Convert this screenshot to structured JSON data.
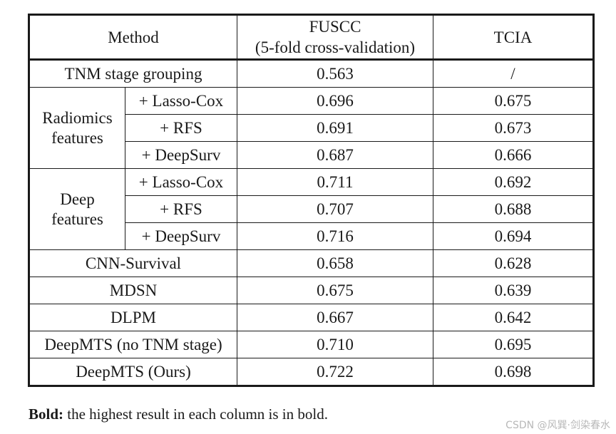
{
  "table": {
    "headers": {
      "method": "Method",
      "fuscc_line1": "FUSCC",
      "fuscc_line2": "(5-fold cross-validation)",
      "tcia": "TCIA"
    },
    "tnm": {
      "method": "TNM stage grouping",
      "fuscc": "0.563",
      "tcia": "/"
    },
    "radiomics": {
      "group_line1": "Radiomics",
      "group_line2": "features",
      "rows": [
        {
          "sub": "+ Lasso-Cox",
          "fuscc": "0.696",
          "tcia": "0.675"
        },
        {
          "sub": "+ RFS",
          "fuscc": "0.691",
          "tcia": "0.673"
        },
        {
          "sub": "+ DeepSurv",
          "fuscc": "0.687",
          "tcia": "0.666"
        }
      ]
    },
    "deep": {
      "group_line1": "Deep",
      "group_line2": "features",
      "rows": [
        {
          "sub": "+ Lasso-Cox",
          "fuscc": "0.711",
          "tcia": "0.692"
        },
        {
          "sub": "+ RFS",
          "fuscc": "0.707",
          "tcia": "0.688"
        },
        {
          "sub": "+ DeepSurv",
          "fuscc": "0.716",
          "tcia": "0.694"
        }
      ]
    },
    "others": [
      {
        "method": "CNN-Survival",
        "fuscc": "0.658",
        "tcia": "0.628"
      },
      {
        "method": "MDSN",
        "fuscc": "0.675",
        "tcia": "0.639"
      },
      {
        "method": "DLPM",
        "fuscc": "0.667",
        "tcia": "0.642"
      },
      {
        "method": "DeepMTS (no TNM stage)",
        "fuscc": "0.710",
        "tcia": "0.695"
      },
      {
        "method": "DeepMTS (Ours)",
        "fuscc": "0.722",
        "tcia": "0.698"
      }
    ]
  },
  "note": {
    "bold_label": "Bold:",
    "text": " the highest result in each column is in bold."
  },
  "watermark": "CSDN @风巽·剑染春水"
}
